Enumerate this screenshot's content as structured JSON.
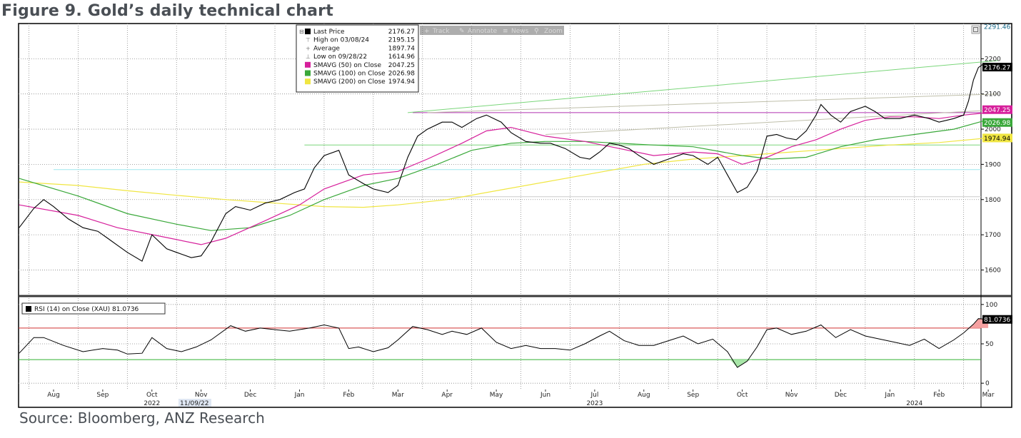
{
  "figure": {
    "title": "Figure 9. Gold’s daily technical chart",
    "source": "Source: Bloomberg, ANZ Research"
  },
  "toolbar": {
    "track": "Track",
    "annotate": "Annotate",
    "news": "News",
    "zoom": "Zoom"
  },
  "legend": [
    {
      "label": "Last Price",
      "value": "2176.27",
      "color": "#000000",
      "marker": "square"
    },
    {
      "label": "High on 03/08/24",
      "value": "2195.15",
      "color": "#777777",
      "marker": "high"
    },
    {
      "label": "Average",
      "value": "1897.74",
      "color": "#777777",
      "marker": "avg"
    },
    {
      "label": "Low on 09/28/22",
      "value": "1614.96",
      "color": "#777777",
      "marker": "low"
    },
    {
      "label": "SMAVG (50)  on Close",
      "value": "2047.25",
      "color": "#d61f9b",
      "marker": "square"
    },
    {
      "label": "SMAVG (100)  on Close",
      "value": "2026.98",
      "color": "#3aa83a",
      "marker": "square"
    },
    {
      "label": "SMAVG (200)  on Close",
      "value": "1974.94",
      "color": "#f0e642",
      "marker": "square"
    }
  ],
  "rsi_legend": "RSI (14)  on Close (XAU) 81.0736",
  "price_tags": [
    {
      "text": "2291.46",
      "value": 2291.46,
      "bg": "#ffffff",
      "fg": "#1a6a8a"
    },
    {
      "text": "2176.27",
      "value": 2176.27,
      "bg": "#000000",
      "fg": "#ffffff"
    },
    {
      "text": "2047.25",
      "value": 2047.25,
      "bg": "#d61f9b",
      "fg": "#ffffff"
    },
    {
      "text": "2026.98",
      "value": 2026.98,
      "bg": "#3aa83a",
      "fg": "#ffffff"
    },
    {
      "text": "1974.94",
      "value": 1974.94,
      "bg": "#f0e642",
      "fg": "#000000"
    }
  ],
  "rsi_tag": {
    "text": "81.0736",
    "value": 81.0736
  },
  "date_marker": "11/09/22",
  "chart_data": {
    "type": "line",
    "title": "",
    "xlabel": "",
    "ylabel": "",
    "months": [
      "Aug",
      "Sep",
      "Oct",
      "Nov",
      "Dec",
      "Jan",
      "Feb",
      "Mar",
      "Apr",
      "May",
      "Jun",
      "Jul",
      "Aug",
      "Sep",
      "Oct",
      "Nov",
      "Dec",
      "Jan",
      "Feb",
      "Mar"
    ],
    "years": [
      {
        "label": "2022",
        "month_index": 2
      },
      {
        "label": "2023",
        "month_index": 11
      },
      {
        "label": "2024",
        "month_index": 17.5
      }
    ],
    "ylim": [
      1530,
      2300
    ],
    "yticks": [
      1600,
      1700,
      1800,
      1900,
      2000,
      2100,
      2200
    ],
    "rsi_ylim": [
      -8,
      108
    ],
    "rsi_yticks": [
      0,
      50,
      100
    ],
    "rsi_levels": [
      30,
      70
    ],
    "horizontal_levels": [
      {
        "value": 2047,
        "color": "#b030b0",
        "from_month": 7.3
      },
      {
        "value": 1955,
        "color": "#7ad67a",
        "from_month": 5.1
      },
      {
        "value": 1885,
        "color": "#9fe8ee",
        "from_month": 0
      },
      {
        "value": 1808,
        "color": "#cccccc",
        "from_month": 6.0
      }
    ],
    "trendlines": [
      {
        "color": "#7ad67a",
        "x1": 7.2,
        "y1": 2047,
        "x2": 19.2,
        "y2": 2195
      },
      {
        "color": "#bfbfaa",
        "x1": 7.6,
        "y1": 2047,
        "x2": 19.2,
        "y2": 2100
      },
      {
        "color": "#bfbfaa",
        "x1": 10.0,
        "y1": 1985,
        "x2": 19.2,
        "y2": 2055
      }
    ],
    "series": [
      {
        "name": "Last Price",
        "color": "#000000",
        "points": [
          [
            -0.7,
            1720
          ],
          [
            -0.4,
            1775
          ],
          [
            -0.2,
            1800
          ],
          [
            0.0,
            1780
          ],
          [
            0.3,
            1745
          ],
          [
            0.6,
            1720
          ],
          [
            0.9,
            1710
          ],
          [
            1.1,
            1690
          ],
          [
            1.3,
            1670
          ],
          [
            1.5,
            1650
          ],
          [
            1.8,
            1625
          ],
          [
            2.0,
            1700
          ],
          [
            2.3,
            1660
          ],
          [
            2.5,
            1650
          ],
          [
            2.8,
            1635
          ],
          [
            3.0,
            1640
          ],
          [
            3.2,
            1680
          ],
          [
            3.5,
            1760
          ],
          [
            3.7,
            1780
          ],
          [
            4.0,
            1770
          ],
          [
            4.3,
            1790
          ],
          [
            4.6,
            1800
          ],
          [
            4.9,
            1820
          ],
          [
            5.1,
            1830
          ],
          [
            5.3,
            1890
          ],
          [
            5.5,
            1925
          ],
          [
            5.8,
            1940
          ],
          [
            6.0,
            1870
          ],
          [
            6.3,
            1845
          ],
          [
            6.5,
            1830
          ],
          [
            6.8,
            1820
          ],
          [
            7.0,
            1840
          ],
          [
            7.2,
            1920
          ],
          [
            7.4,
            1980
          ],
          [
            7.6,
            2000
          ],
          [
            7.9,
            2020
          ],
          [
            8.1,
            2020
          ],
          [
            8.3,
            2005
          ],
          [
            8.6,
            2030
          ],
          [
            8.8,
            2040
          ],
          [
            9.1,
            2020
          ],
          [
            9.3,
            1990
          ],
          [
            9.6,
            1965
          ],
          [
            9.9,
            1960
          ],
          [
            10.1,
            1960
          ],
          [
            10.4,
            1945
          ],
          [
            10.7,
            1920
          ],
          [
            10.9,
            1915
          ],
          [
            11.1,
            1935
          ],
          [
            11.3,
            1960
          ],
          [
            11.5,
            1955
          ],
          [
            11.7,
            1945
          ],
          [
            11.9,
            1925
          ],
          [
            12.2,
            1900
          ],
          [
            12.5,
            1915
          ],
          [
            12.8,
            1930
          ],
          [
            13.0,
            1925
          ],
          [
            13.3,
            1900
          ],
          [
            13.5,
            1920
          ],
          [
            13.7,
            1870
          ],
          [
            13.9,
            1820
          ],
          [
            14.1,
            1835
          ],
          [
            14.3,
            1880
          ],
          [
            14.5,
            1980
          ],
          [
            14.7,
            1985
          ],
          [
            14.9,
            1975
          ],
          [
            15.1,
            1970
          ],
          [
            15.3,
            1995
          ],
          [
            15.5,
            2040
          ],
          [
            15.6,
            2070
          ],
          [
            15.8,
            2040
          ],
          [
            16.0,
            2020
          ],
          [
            16.2,
            2050
          ],
          [
            16.5,
            2065
          ],
          [
            16.7,
            2050
          ],
          [
            16.9,
            2030
          ],
          [
            17.2,
            2030
          ],
          [
            17.5,
            2040
          ],
          [
            17.8,
            2030
          ],
          [
            18.0,
            2020
          ],
          [
            18.3,
            2030
          ],
          [
            18.5,
            2040
          ],
          [
            18.6,
            2080
          ],
          [
            18.7,
            2140
          ],
          [
            18.8,
            2175
          ],
          [
            18.9,
            2185
          ],
          [
            19.0,
            2176
          ]
        ]
      },
      {
        "name": "SMAVG (50)  on Close",
        "color": "#d61f9b",
        "points": [
          [
            -0.7,
            1785
          ],
          [
            0.5,
            1755
          ],
          [
            1.3,
            1720
          ],
          [
            2.2,
            1695
          ],
          [
            3.0,
            1672
          ],
          [
            3.5,
            1690
          ],
          [
            4.3,
            1740
          ],
          [
            5.0,
            1785
          ],
          [
            5.5,
            1830
          ],
          [
            6.3,
            1870
          ],
          [
            7.0,
            1880
          ],
          [
            7.6,
            1915
          ],
          [
            8.3,
            1960
          ],
          [
            8.8,
            1995
          ],
          [
            9.3,
            2005
          ],
          [
            10.0,
            1980
          ],
          [
            10.8,
            1965
          ],
          [
            11.5,
            1945
          ],
          [
            12.2,
            1925
          ],
          [
            13.0,
            1935
          ],
          [
            13.5,
            1930
          ],
          [
            14.0,
            1900
          ],
          [
            14.5,
            1920
          ],
          [
            15.0,
            1950
          ],
          [
            15.5,
            1970
          ],
          [
            16.0,
            2000
          ],
          [
            16.5,
            2025
          ],
          [
            17.0,
            2035
          ],
          [
            17.5,
            2035
          ],
          [
            18.0,
            2030
          ],
          [
            18.5,
            2040
          ],
          [
            19.0,
            2047
          ]
        ]
      },
      {
        "name": "SMAVG (100)  on Close",
        "color": "#3aa83a",
        "points": [
          [
            -0.7,
            1860
          ],
          [
            0.5,
            1810
          ],
          [
            1.5,
            1760
          ],
          [
            2.5,
            1730
          ],
          [
            3.2,
            1712
          ],
          [
            4.0,
            1720
          ],
          [
            4.8,
            1755
          ],
          [
            5.5,
            1800
          ],
          [
            6.3,
            1840
          ],
          [
            7.0,
            1860
          ],
          [
            7.8,
            1900
          ],
          [
            8.5,
            1940
          ],
          [
            9.3,
            1960
          ],
          [
            10.0,
            1965
          ],
          [
            10.8,
            1965
          ],
          [
            11.5,
            1960
          ],
          [
            12.2,
            1955
          ],
          [
            13.0,
            1950
          ],
          [
            13.6,
            1935
          ],
          [
            14.0,
            1925
          ],
          [
            14.6,
            1915
          ],
          [
            15.3,
            1920
          ],
          [
            16.0,
            1950
          ],
          [
            16.7,
            1970
          ],
          [
            17.5,
            1985
          ],
          [
            18.3,
            2000
          ],
          [
            19.0,
            2027
          ]
        ]
      },
      {
        "name": "SMAVG (200)  on Close",
        "color": "#f0e642",
        "points": [
          [
            -0.7,
            1850
          ],
          [
            0.5,
            1840
          ],
          [
            1.5,
            1825
          ],
          [
            2.5,
            1812
          ],
          [
            3.5,
            1800
          ],
          [
            4.5,
            1790
          ],
          [
            5.5,
            1780
          ],
          [
            6.3,
            1778
          ],
          [
            7.0,
            1785
          ],
          [
            8.0,
            1800
          ],
          [
            9.0,
            1825
          ],
          [
            10.0,
            1850
          ],
          [
            11.0,
            1875
          ],
          [
            12.0,
            1900
          ],
          [
            13.0,
            1915
          ],
          [
            14.0,
            1925
          ],
          [
            15.0,
            1935
          ],
          [
            16.0,
            1945
          ],
          [
            17.0,
            1955
          ],
          [
            18.0,
            1962
          ],
          [
            19.0,
            1975
          ]
        ]
      },
      {
        "name": "RSI (14)  on Close (XAU)",
        "color": "#000000",
        "points": [
          [
            -0.7,
            38
          ],
          [
            -0.4,
            58
          ],
          [
            -0.2,
            58
          ],
          [
            0.2,
            48
          ],
          [
            0.6,
            40
          ],
          [
            1.0,
            44
          ],
          [
            1.3,
            42
          ],
          [
            1.5,
            37
          ],
          [
            1.8,
            38
          ],
          [
            2.0,
            58
          ],
          [
            2.3,
            44
          ],
          [
            2.6,
            40
          ],
          [
            2.9,
            46
          ],
          [
            3.2,
            55
          ],
          [
            3.6,
            73
          ],
          [
            3.9,
            66
          ],
          [
            4.2,
            70
          ],
          [
            4.5,
            68
          ],
          [
            4.8,
            66
          ],
          [
            5.2,
            70
          ],
          [
            5.5,
            74
          ],
          [
            5.8,
            70
          ],
          [
            6.0,
            44
          ],
          [
            6.2,
            46
          ],
          [
            6.5,
            40
          ],
          [
            6.8,
            45
          ],
          [
            7.0,
            55
          ],
          [
            7.3,
            72
          ],
          [
            7.6,
            68
          ],
          [
            7.9,
            62
          ],
          [
            8.1,
            66
          ],
          [
            8.4,
            62
          ],
          [
            8.7,
            70
          ],
          [
            9.0,
            52
          ],
          [
            9.3,
            44
          ],
          [
            9.6,
            48
          ],
          [
            9.9,
            44
          ],
          [
            10.2,
            44
          ],
          [
            10.5,
            42
          ],
          [
            10.8,
            50
          ],
          [
            11.1,
            60
          ],
          [
            11.3,
            66
          ],
          [
            11.6,
            54
          ],
          [
            11.9,
            48
          ],
          [
            12.2,
            48
          ],
          [
            12.5,
            54
          ],
          [
            12.8,
            60
          ],
          [
            13.1,
            50
          ],
          [
            13.4,
            56
          ],
          [
            13.7,
            40
          ],
          [
            13.9,
            20
          ],
          [
            14.1,
            28
          ],
          [
            14.3,
            46
          ],
          [
            14.5,
            68
          ],
          [
            14.7,
            70
          ],
          [
            15.0,
            62
          ],
          [
            15.3,
            66
          ],
          [
            15.6,
            74
          ],
          [
            15.9,
            58
          ],
          [
            16.2,
            68
          ],
          [
            16.5,
            60
          ],
          [
            16.8,
            56
          ],
          [
            17.1,
            52
          ],
          [
            17.4,
            48
          ],
          [
            17.7,
            56
          ],
          [
            18.0,
            44
          ],
          [
            18.3,
            55
          ],
          [
            18.5,
            64
          ],
          [
            18.7,
            75
          ],
          [
            18.8,
            82
          ],
          [
            19.0,
            81
          ]
        ]
      }
    ]
  }
}
